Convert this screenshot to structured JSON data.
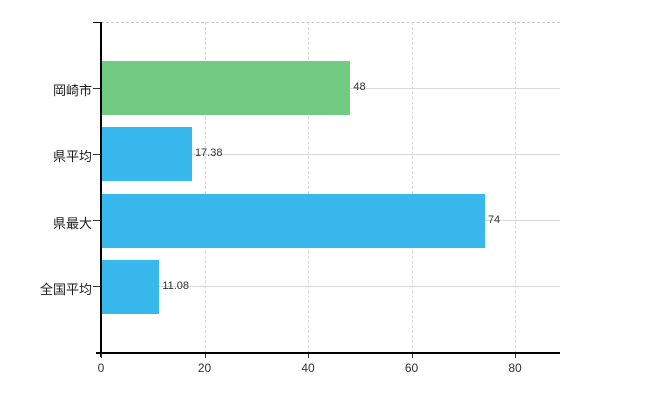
{
  "chart_data": {
    "type": "bar",
    "orientation": "horizontal",
    "title": "",
    "xlabel": "",
    "ylabel": "",
    "categories": [
      "岡崎市",
      "県平均",
      "県最大",
      "全国平均"
    ],
    "values": [
      48,
      17.38,
      74,
      11.08
    ],
    "value_labels": [
      "48",
      "17.38",
      "74",
      "11.08"
    ],
    "bar_colors": [
      "#72cb82",
      "#38b8ec",
      "#38b8ec",
      "#38b8ec"
    ],
    "x_ticks": [
      {
        "value": 0,
        "label": "0"
      },
      {
        "value": 20,
        "label": "20"
      },
      {
        "value": 40,
        "label": "40"
      },
      {
        "value": 60,
        "label": "60"
      },
      {
        "value": 80,
        "label": "80"
      }
    ],
    "xlim": [
      0,
      88.7
    ],
    "grid": "on",
    "legend": "none",
    "colors": {
      "background": "#ffffff",
      "axis": "#000000",
      "grid": "#d9d9d9",
      "top_border": "#c9c9c9",
      "category_label": "#1a1a1a",
      "value_label": "#333333",
      "tick_label": "#333333",
      "bar_green": "#72cb82",
      "bar_blue": "#38b8ec"
    }
  }
}
